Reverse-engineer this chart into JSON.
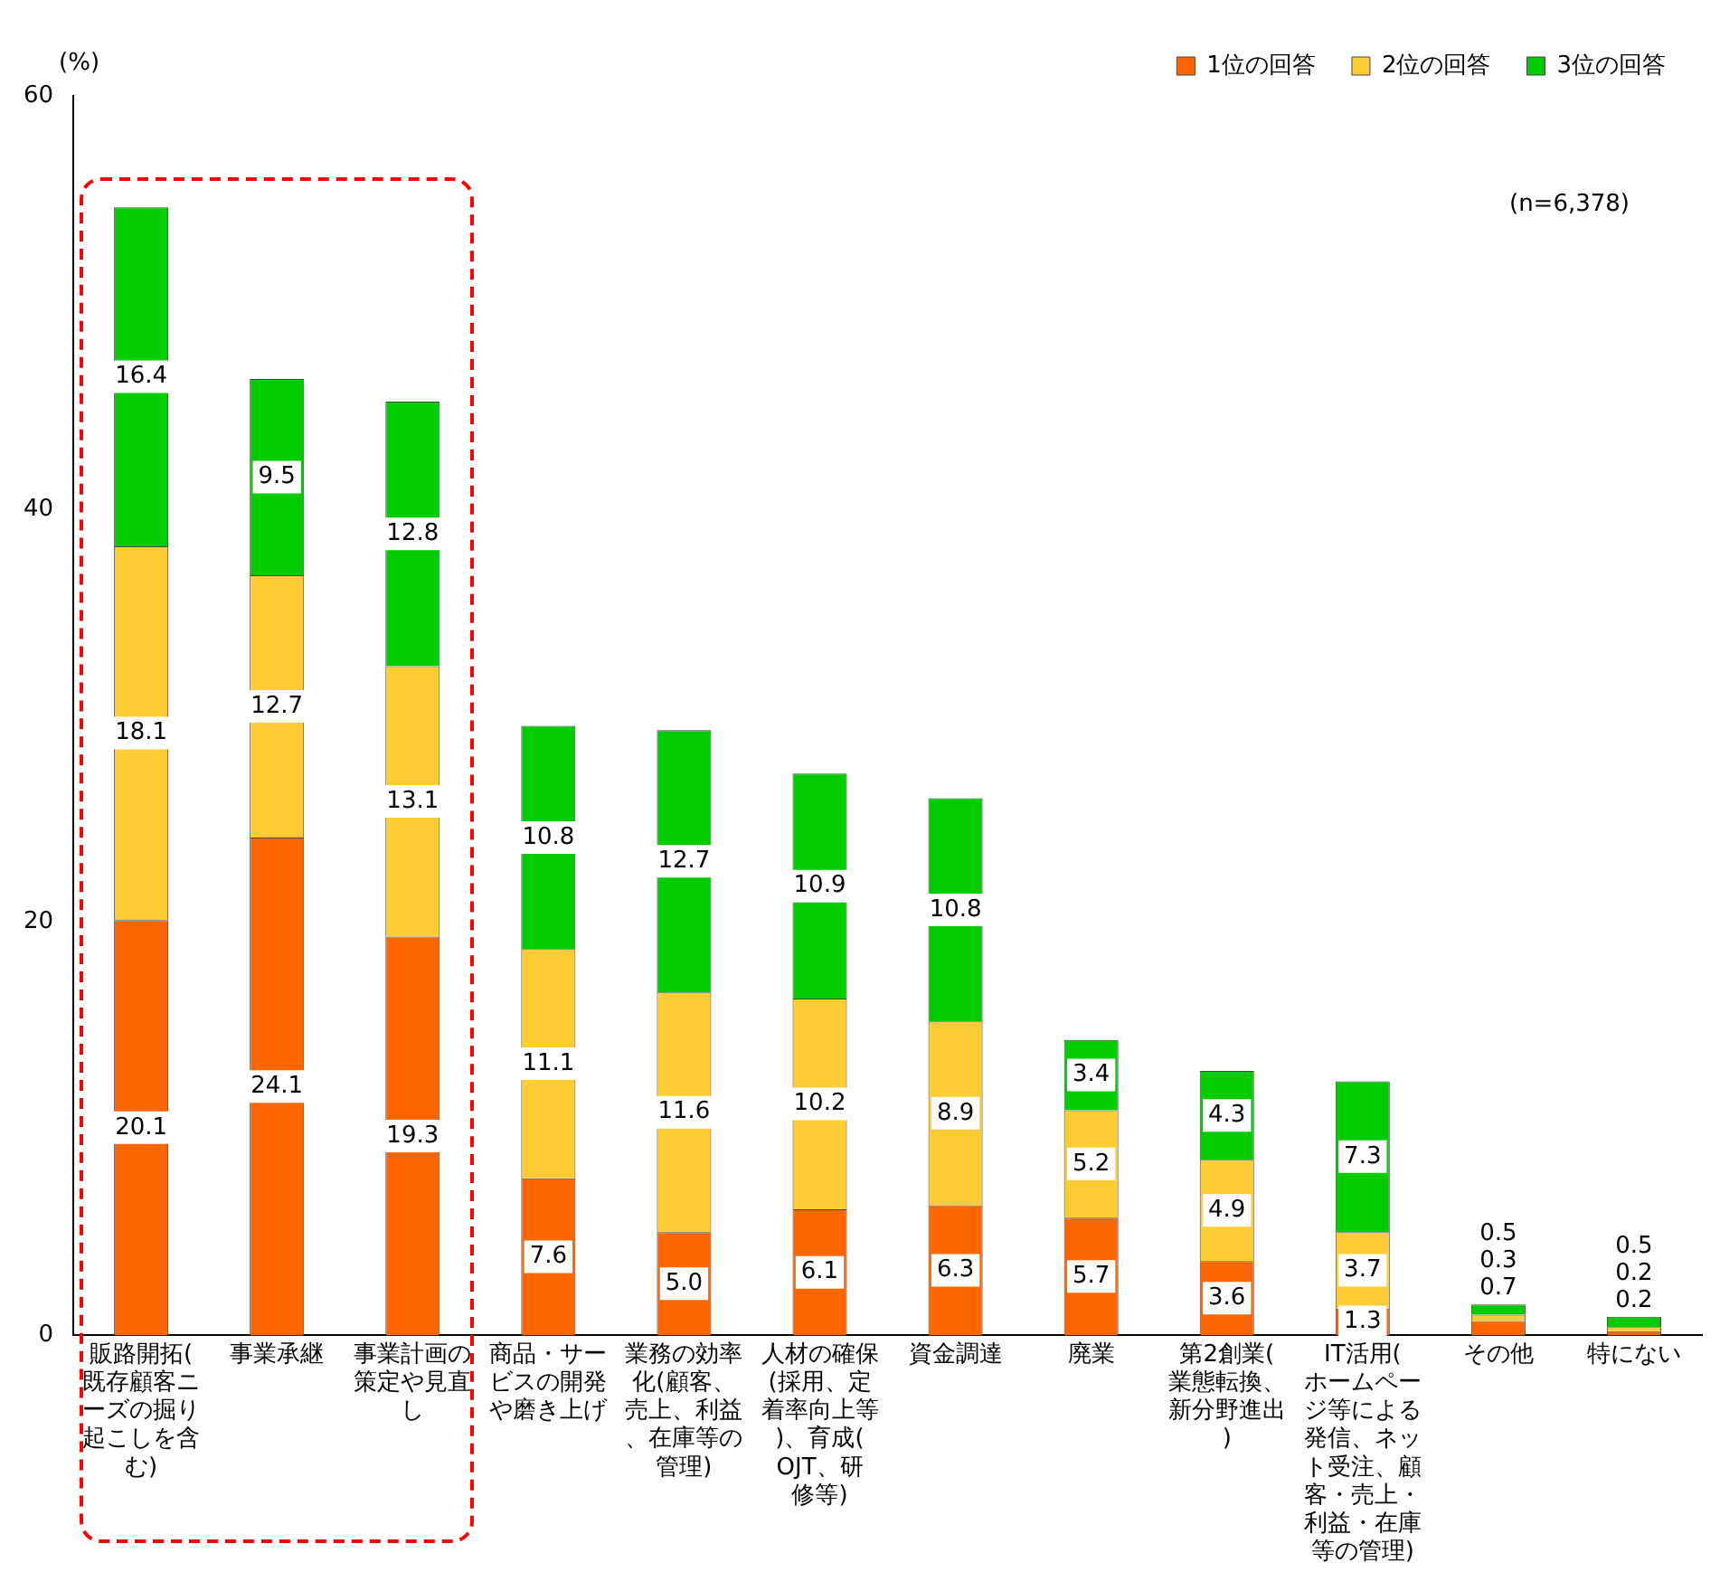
{
  "chart_data": {
    "type": "bar",
    "stacked": true,
    "ylabel": "(%)",
    "categories": [
      "販路開拓(既存顧客ニーズの掘り起こしを含む)",
      "事業承継",
      "事業計画の策定や見直し",
      "商品・サービスの開発や磨き上げ",
      "業務の効率化(顧客、売上、利益、在庫等の管理)",
      "人材の確保(採用、定着率向上等)、育成(OJT、研修等)",
      "資金調達",
      "廃業",
      "第2創業(業態転換、新分野進出)",
      "IT活用(ホームページ等による発信、ネット受注、顧客・売上・利益・在庫等の管理)",
      "その他",
      "特にない"
    ],
    "series": [
      {
        "name": "1位の回答",
        "color": "#ff6600",
        "values": [
          20.1,
          24.1,
          19.3,
          7.6,
          5.0,
          6.1,
          6.3,
          5.7,
          3.6,
          1.3,
          0.7,
          0.2
        ],
        "value_labels": [
          "20.1",
          "24.1",
          "19.3",
          "7.6",
          "5.0",
          "6.1",
          "6.3",
          "5.7",
          "3.6",
          "1.3",
          "0.7",
          "0.2"
        ]
      },
      {
        "name": "2位の回答",
        "color": "#ffcc33",
        "values": [
          18.1,
          12.7,
          13.1,
          11.1,
          11.6,
          10.2,
          8.9,
          5.2,
          4.9,
          3.7,
          0.3,
          0.2
        ]
      },
      {
        "name": "3位の回答",
        "color": "#00cc00",
        "values": [
          16.4,
          9.5,
          12.8,
          10.8,
          12.7,
          10.9,
          10.8,
          3.4,
          4.3,
          7.3,
          0.5,
          0.5
        ]
      }
    ],
    "ylim": [
      0,
      60
    ],
    "yticks": [
      0,
      20,
      40,
      60
    ],
    "grid": false,
    "legend": "top right",
    "data_labels": true,
    "annotations": [
      "(n=6,378)"
    ]
  }
}
